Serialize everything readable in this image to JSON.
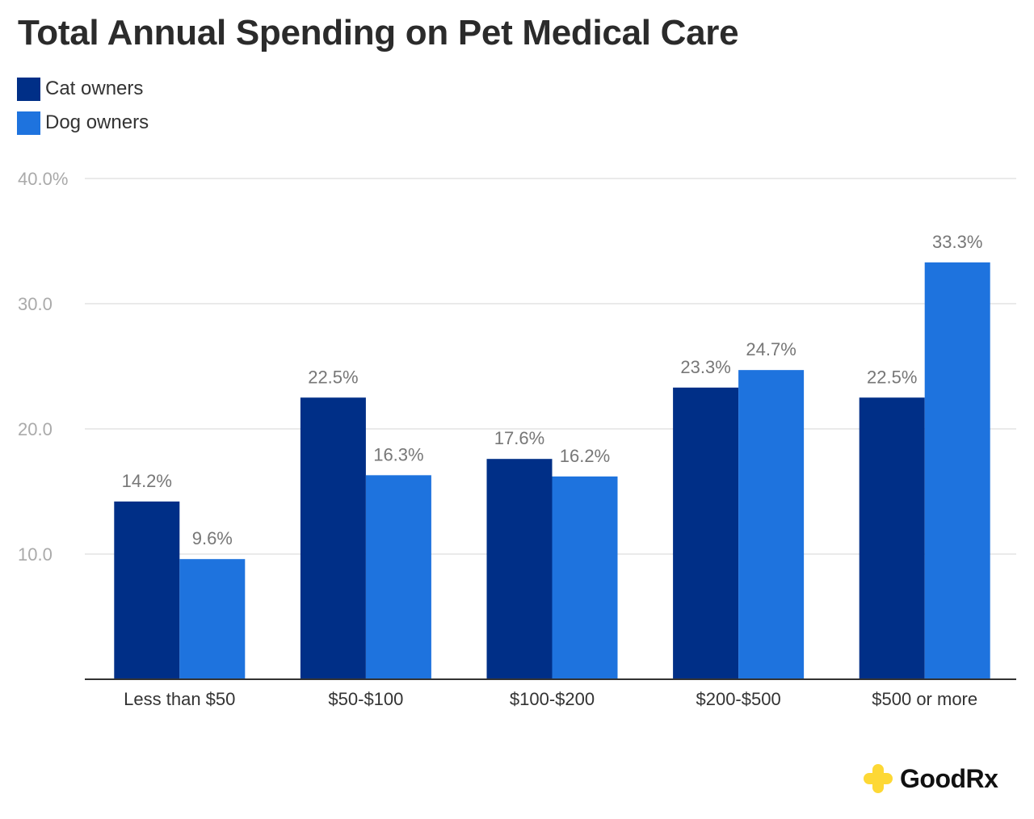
{
  "chart_data": {
    "type": "bar",
    "title": "Total Annual Spending on Pet Medical Care",
    "categories": [
      "Less than $50",
      "$50-$100",
      "$100-$200",
      "$200-$500",
      "$500 or more"
    ],
    "series": [
      {
        "name": "Cat owners",
        "color": "#002f87",
        "values": [
          14.2,
          22.5,
          17.6,
          23.3,
          22.5
        ],
        "labels": [
          "14.2%",
          "22.5%",
          "17.6%",
          "23.3%",
          "22.5%"
        ]
      },
      {
        "name": "Dog owners",
        "color": "#1e73de",
        "values": [
          9.6,
          16.3,
          16.2,
          24.7,
          33.3
        ],
        "labels": [
          "9.6%",
          "16.3%",
          "16.2%",
          "24.7%",
          "33.3%"
        ]
      }
    ],
    "yticks": [
      10,
      20,
      30,
      40
    ],
    "ytick_labels": [
      "10.0",
      "20.0",
      "30.0",
      "40.0%"
    ],
    "ylim": [
      0,
      40
    ],
    "grid": true,
    "legend": "top-left",
    "xlabel": "",
    "ylabel": ""
  },
  "logo": {
    "text": "GoodRx",
    "color": "#fdd835"
  }
}
